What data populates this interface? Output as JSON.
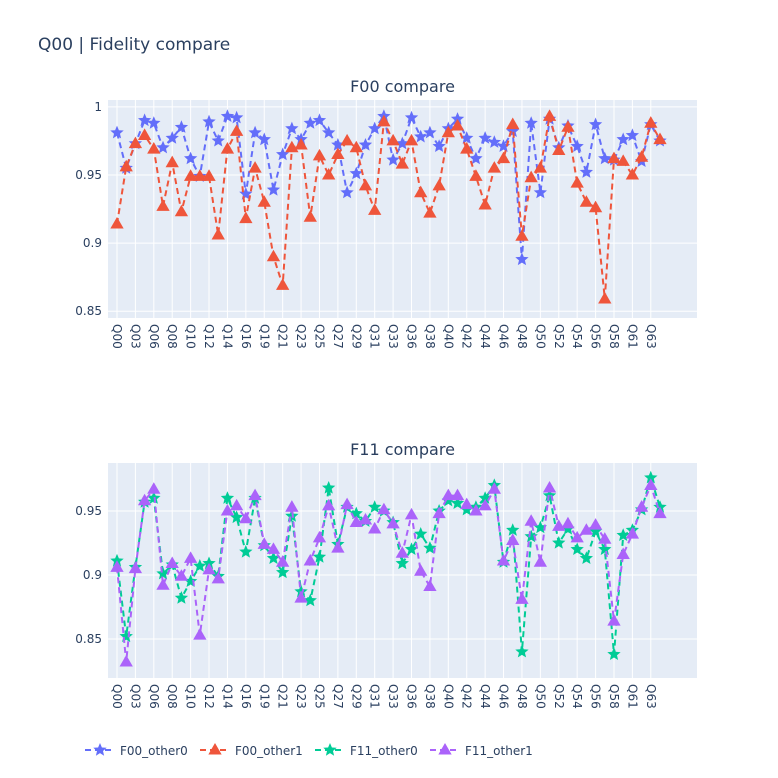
{
  "title": "Q00 | Fidelity compare",
  "chart_data": [
    {
      "type": "line",
      "title": "F00 compare",
      "categories": [
        "Q00",
        null,
        "Q03",
        null,
        "Q06",
        null,
        "Q08",
        null,
        "Q10",
        null,
        "Q12",
        null,
        "Q14",
        null,
        "Q16",
        null,
        "Q19",
        null,
        "Q21",
        null,
        "Q23",
        null,
        "Q25",
        null,
        "Q27",
        null,
        "Q29",
        null,
        "Q31",
        null,
        "Q33",
        null,
        "Q36",
        null,
        "Q38",
        null,
        "Q40",
        null,
        "Q42",
        null,
        "Q44",
        null,
        "Q46",
        null,
        "Q48",
        null,
        "Q50",
        null,
        "Q52",
        null,
        "Q54",
        null,
        "Q56",
        null,
        "Q58",
        null,
        "Q61",
        null,
        "Q63",
        null
      ],
      "ylim": [
        0.845,
        1.005
      ],
      "yticks": [
        0.85,
        0.9,
        0.95,
        1
      ],
      "grid": true,
      "series": [
        {
          "name": "F00_other0",
          "color": "#636efa",
          "marker": "star",
          "values": [
            0.981,
            0.955,
            0.973,
            0.99,
            0.988,
            0.97,
            0.977,
            0.985,
            0.962,
            0.949,
            0.989,
            0.975,
            0.993,
            0.992,
            0.936,
            0.981,
            0.976,
            0.939,
            0.965,
            0.984,
            0.976,
            0.988,
            0.99,
            0.981,
            0.972,
            0.937,
            0.951,
            0.972,
            0.984,
            0.993,
            0.961,
            0.973,
            0.992,
            0.978,
            0.981,
            0.971,
            0.984,
            0.991,
            0.977,
            0.962,
            0.977,
            0.974,
            0.971,
            0.982,
            0.888,
            0.988,
            0.937,
            0.991,
            0.97,
            0.986,
            0.971,
            0.952,
            0.987,
            0.962,
            0.961,
            0.976,
            0.979,
            0.96,
            0.987,
            0.975
          ]
        },
        {
          "name": "F00_other1",
          "color": "#EF553B",
          "marker": "triangle",
          "values": [
            0.914,
            0.956,
            0.973,
            0.979,
            0.969,
            0.927,
            0.959,
            0.923,
            0.949,
            0.949,
            0.949,
            0.906,
            0.969,
            0.982,
            0.918,
            0.955,
            0.93,
            0.89,
            0.869,
            0.97,
            0.972,
            0.919,
            0.964,
            0.95,
            0.965,
            0.975,
            0.97,
            0.942,
            0.924,
            0.989,
            0.975,
            0.958,
            0.975,
            0.937,
            0.922,
            0.942,
            0.981,
            0.986,
            0.969,
            0.949,
            0.928,
            0.955,
            0.962,
            0.987,
            0.905,
            0.948,
            0.955,
            0.993,
            0.968,
            0.985,
            0.944,
            0.93,
            0.926,
            0.859,
            0.962,
            0.96,
            0.95,
            0.963,
            0.988,
            0.976
          ]
        }
      ]
    },
    {
      "type": "line",
      "title": "F11 compare",
      "categories": [
        "Q00",
        null,
        "Q03",
        null,
        "Q06",
        null,
        "Q08",
        null,
        "Q10",
        null,
        "Q12",
        null,
        "Q14",
        null,
        "Q16",
        null,
        "Q19",
        null,
        "Q21",
        null,
        "Q23",
        null,
        "Q25",
        null,
        "Q27",
        null,
        "Q29",
        null,
        "Q31",
        null,
        "Q33",
        null,
        "Q36",
        null,
        "Q38",
        null,
        "Q40",
        null,
        "Q42",
        null,
        "Q44",
        null,
        "Q46",
        null,
        "Q48",
        null,
        "Q50",
        null,
        "Q52",
        null,
        "Q54",
        null,
        "Q56",
        null,
        "Q58",
        null,
        "Q61",
        null,
        "Q63",
        null
      ],
      "ylim": [
        0.8195,
        0.9875
      ],
      "yticks": [
        0.85,
        0.9,
        0.95
      ],
      "grid": true,
      "series": [
        {
          "name": "F11_other0",
          "color": "#00cc96",
          "marker": "star",
          "values": [
            0.911,
            0.852,
            0.906,
            0.957,
            0.96,
            0.901,
            0.908,
            0.882,
            0.895,
            0.907,
            0.909,
            0.899,
            0.96,
            0.945,
            0.918,
            0.96,
            0.923,
            0.913,
            0.902,
            0.946,
            0.887,
            0.88,
            0.914,
            0.968,
            0.924,
            0.953,
            0.948,
            0.942,
            0.953,
            0.95,
            0.941,
            0.909,
            0.92,
            0.932,
            0.921,
            0.95,
            0.958,
            0.956,
            0.951,
            0.953,
            0.96,
            0.97,
            0.91,
            0.935,
            0.84,
            0.93,
            0.937,
            0.962,
            0.925,
            0.936,
            0.92,
            0.913,
            0.934,
            0.92,
            0.838,
            0.931,
            0.935,
            0.951,
            0.976,
            0.953
          ]
        },
        {
          "name": "F11_other1",
          "color": "#ab63fa",
          "marker": "triangle",
          "values": [
            0.906,
            0.832,
            0.905,
            0.958,
            0.967,
            0.892,
            0.909,
            0.899,
            0.913,
            0.853,
            0.904,
            0.897,
            0.95,
            0.954,
            0.944,
            0.962,
            0.924,
            0.92,
            0.91,
            0.953,
            0.882,
            0.911,
            0.929,
            0.954,
            0.921,
            0.955,
            0.941,
            0.943,
            0.936,
            0.951,
            0.94,
            0.917,
            0.947,
            0.903,
            0.891,
            0.948,
            0.962,
            0.962,
            0.955,
            0.95,
            0.954,
            0.967,
            0.911,
            0.927,
            0.881,
            0.942,
            0.91,
            0.968,
            0.938,
            0.94,
            0.929,
            0.935,
            0.939,
            0.928,
            0.864,
            0.916,
            0.932,
            0.953,
            0.97,
            0.948
          ]
        }
      ]
    }
  ]
}
